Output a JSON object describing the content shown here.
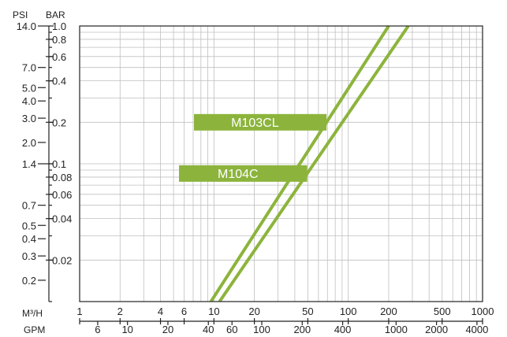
{
  "chart_data": {
    "type": "line",
    "title": "",
    "scale": "log-log",
    "grid": true,
    "x_axes": {
      "m3h": {
        "unit_label": "M³/H",
        "range": [
          1,
          1000
        ],
        "tick_labels": [
          "1",
          "2",
          "4",
          "6",
          "10",
          "20",
          "50",
          "100",
          "200",
          "500",
          "1000"
        ]
      },
      "gpm": {
        "unit_label": "GPM",
        "tick_labels": [
          "6",
          "10",
          "20",
          "40",
          "60",
          "100",
          "200",
          "400",
          "1000",
          "2000",
          "4000"
        ]
      }
    },
    "y_axes": {
      "bar": {
        "unit_label": "BAR",
        "range": [
          0.01,
          1.0
        ],
        "tick_labels": [
          "1.0",
          "0.8",
          "0.6",
          "0.4",
          "0.2",
          "0.1",
          "0.08",
          "0.06",
          "0.04",
          "0.02"
        ]
      },
      "psi": {
        "unit_label": "PSI",
        "tick_labels": [
          "14.0",
          "7.0",
          "5.0",
          "4.0",
          "3.0",
          "2.0",
          "1.4",
          "0.7",
          "0.5",
          "0.4",
          "0.3",
          "0.2"
        ]
      }
    },
    "line_color": "#8cb43c",
    "series": [
      {
        "name": "M103CL",
        "x": [
          9.5,
          200
        ],
        "y": [
          0.01,
          1.0
        ]
      },
      {
        "name": "M104C",
        "x": [
          11,
          280
        ],
        "y": [
          0.01,
          1.0
        ]
      }
    ],
    "annotations": [
      {
        "text": "M103CL",
        "series": "M103CL",
        "y": 0.2
      },
      {
        "text": "M104C",
        "series": "M104C",
        "y": 0.085
      }
    ]
  }
}
